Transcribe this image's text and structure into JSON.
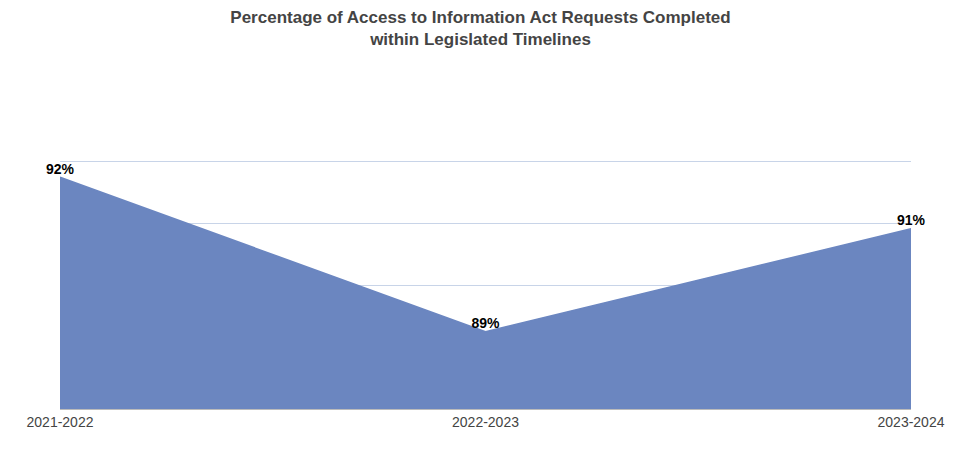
{
  "chart_data": {
    "type": "area",
    "title": "Percentage of Access to Information Act Requests Completed\nwithin Legislated Timelines",
    "categories": [
      "2021-2022",
      "2022-2023",
      "2023-2024"
    ],
    "values": [
      92,
      89,
      91
    ],
    "value_labels": [
      "92%",
      "89%",
      "91%"
    ],
    "data_labels": true,
    "color": "#6b86c0",
    "ylim": [
      87.5,
      93.5
    ],
    "yticks": [
      87.5,
      88.7,
      89.9,
      91.1,
      92.3,
      93.5
    ],
    "tick_labels": "x",
    "grid": true
  }
}
